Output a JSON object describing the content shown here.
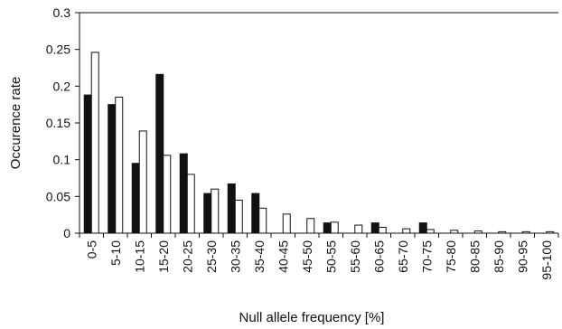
{
  "chart_data": {
    "type": "bar",
    "title": "",
    "xlabel": "Null allele frequency [%]",
    "ylabel": "Occurence rate",
    "ylim": [
      0,
      0.3
    ],
    "yticks": [
      "0",
      "0.05",
      "0.1",
      "0.15",
      "0.2",
      "0.25",
      "0.3"
    ],
    "grid": false,
    "legend": "none",
    "categories": [
      "0-5",
      "5-10",
      "10-15",
      "15-20",
      "20-25",
      "25-30",
      "30-35",
      "35-40",
      "40-45",
      "45-50",
      "50-55",
      "55-60",
      "60-65",
      "65-70",
      "70-75",
      "75-80",
      "80-85",
      "85-90",
      "90-95",
      "95-100"
    ],
    "series": [
      {
        "color": "#111111",
        "values": [
          0.188,
          0.175,
          0.095,
          0.216,
          0.108,
          0.054,
          0.067,
          0.054,
          0,
          0,
          0.014,
          0,
          0.014,
          0,
          0.014,
          0,
          0,
          0,
          0,
          0
        ]
      },
      {
        "color": "#ffffff",
        "values": [
          0.246,
          0.185,
          0.139,
          0.106,
          0.08,
          0.06,
          0.045,
          0.034,
          0.026,
          0.02,
          0.015,
          0.011,
          0.008,
          0.006,
          0.005,
          0.004,
          0.003,
          0.002,
          0.002,
          0.002
        ]
      }
    ]
  }
}
